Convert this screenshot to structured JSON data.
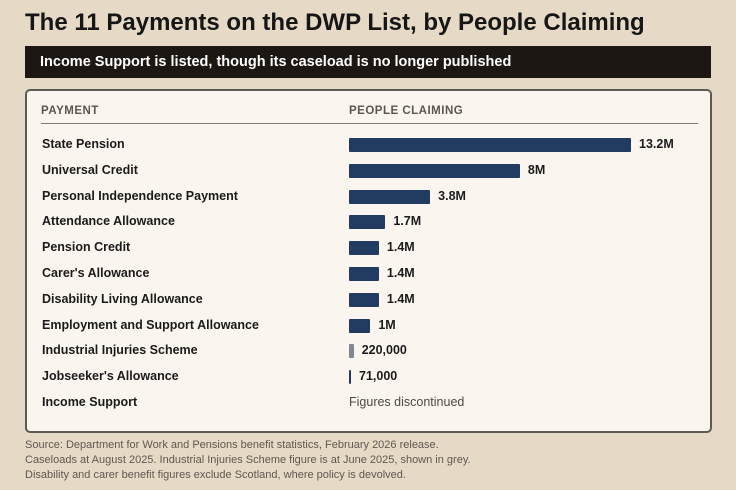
{
  "header": {
    "title": "The 11 Payments on the DWP List, by People Claiming",
    "subtitle": "Income Support is listed, though its caseload is no longer published"
  },
  "table": {
    "col_payment": "PAYMENT",
    "col_people": "PEOPLE CLAIMING"
  },
  "chart_data": {
    "type": "bar",
    "orientation": "horizontal",
    "categories": [
      "State Pension",
      "Universal Credit",
      "Personal Independence Payment",
      "Attendance Allowance",
      "Pension Credit",
      "Carer's Allowance",
      "Disability Living Allowance",
      "Employment and Support Allowance",
      "Industrial Injuries Scheme",
      "Jobseeker's Allowance",
      "Income Support"
    ],
    "values": [
      13200000,
      8000000,
      3800000,
      1700000,
      1400000,
      1400000,
      1400000,
      1000000,
      220000,
      71000,
      null
    ],
    "value_labels": [
      "13.2M",
      "8M",
      "3.8M",
      "1.7M",
      "1.4M",
      "1.4M",
      "1.4M",
      "1M",
      "220,000",
      "71,000",
      null
    ],
    "notes": [
      null,
      null,
      null,
      null,
      null,
      null,
      null,
      null,
      null,
      null,
      "Figures discontinued"
    ],
    "bar_color": "#223c61",
    "highlight_color": "#7f8792",
    "grey_category": "Industrial Injuries Scheme",
    "xlim": [
      0,
      13200000
    ]
  },
  "footer": {
    "source_lines": [
      "Source: Department for Work and Pensions benefit statistics, February 2026 release.",
      "Caseloads at August 2025. Industrial Injuries Scheme figure is at June 2025, shown in grey.",
      "Disability and carer benefit figures exclude Scotland, where policy is devolved."
    ]
  }
}
